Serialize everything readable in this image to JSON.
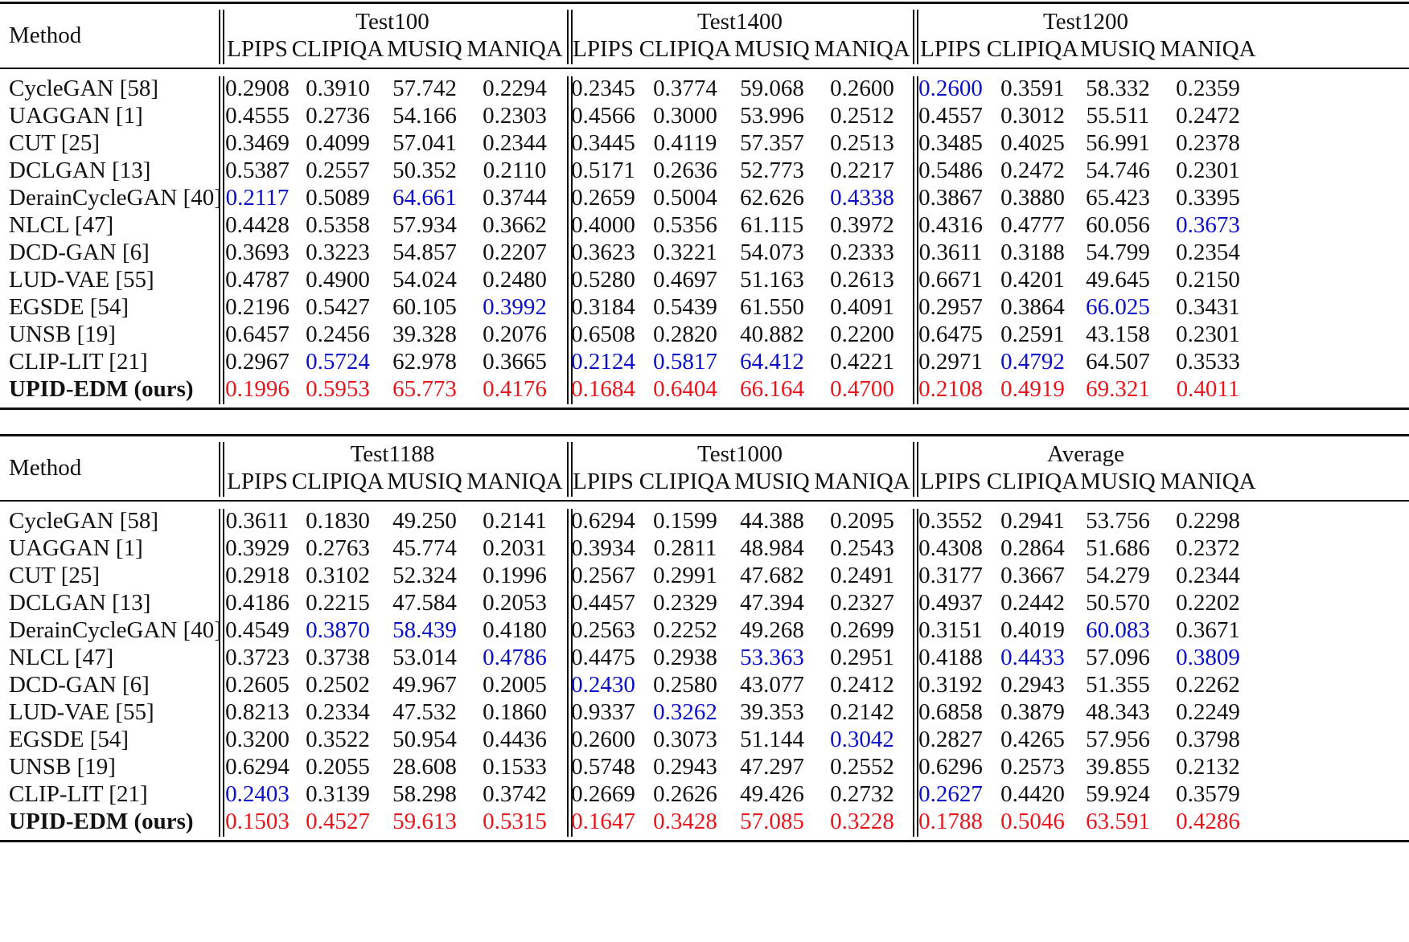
{
  "colors": {
    "best": "#e8161c",
    "second": "#0a10c8",
    "text": "#111111"
  },
  "method_header": "Method",
  "metrics": [
    "LPIPS",
    "CLIPIQA",
    "MUSIQ",
    "MANIQA"
  ],
  "methods": [
    "CycleGAN [58]",
    "UAGGAN [1]",
    "CUT [25]",
    "DCLGAN [13]",
    "DerainCycleGAN [40]",
    "NLCL [47]",
    "DCD-GAN [6]",
    "LUD-VAE [55]",
    "EGSDE [54]",
    "UNSB [19]",
    "CLIP-LIT [21]",
    "UPID-EDM (ours)"
  ],
  "tables": [
    {
      "datasets": [
        "Test100",
        "Test1400",
        "Test1200"
      ],
      "rows": [
        {
          "values": [
            "0.2908",
            "0.3910",
            "57.742",
            "0.2294",
            "0.2345",
            "0.3774",
            "59.068",
            "0.2600",
            "0.2600",
            "0.3591",
            "58.332",
            "0.2359"
          ],
          "hl": [
            "",
            "",
            "",
            "",
            "",
            "",
            "",
            "",
            "b",
            "",
            "",
            ""
          ]
        },
        {
          "values": [
            "0.4555",
            "0.2736",
            "54.166",
            "0.2303",
            "0.4566",
            "0.3000",
            "53.996",
            "0.2512",
            "0.4557",
            "0.3012",
            "55.511",
            "0.2472"
          ],
          "hl": [
            "",
            "",
            "",
            "",
            "",
            "",
            "",
            "",
            "",
            "",
            "",
            ""
          ]
        },
        {
          "values": [
            "0.3469",
            "0.4099",
            "57.041",
            "0.2344",
            "0.3445",
            "0.4119",
            "57.357",
            "0.2513",
            "0.3485",
            "0.4025",
            "56.991",
            "0.2378"
          ],
          "hl": [
            "",
            "",
            "",
            "",
            "",
            "",
            "",
            "",
            "",
            "",
            "",
            ""
          ]
        },
        {
          "values": [
            "0.5387",
            "0.2557",
            "50.352",
            "0.2110",
            "0.5171",
            "0.2636",
            "52.773",
            "0.2217",
            "0.5486",
            "0.2472",
            "54.746",
            "0.2301"
          ],
          "hl": [
            "",
            "",
            "",
            "",
            "",
            "",
            "",
            "",
            "",
            "",
            "",
            ""
          ]
        },
        {
          "values": [
            "0.2117",
            "0.5089",
            "64.661",
            "0.3744",
            "0.2659",
            "0.5004",
            "62.626",
            "0.4338",
            "0.3867",
            "0.3880",
            "65.423",
            "0.3395"
          ],
          "hl": [
            "b",
            "",
            "b",
            "",
            "",
            "",
            "",
            "b",
            "",
            "",
            "",
            ""
          ]
        },
        {
          "values": [
            "0.4428",
            "0.5358",
            "57.934",
            "0.3662",
            "0.4000",
            "0.5356",
            "61.115",
            "0.3972",
            "0.4316",
            "0.4777",
            "60.056",
            "0.3673"
          ],
          "hl": [
            "",
            "",
            "",
            "",
            "",
            "",
            "",
            "",
            "",
            "",
            "",
            "b"
          ]
        },
        {
          "values": [
            "0.3693",
            "0.3223",
            "54.857",
            "0.2207",
            "0.3623",
            "0.3221",
            "54.073",
            "0.2333",
            "0.3611",
            "0.3188",
            "54.799",
            "0.2354"
          ],
          "hl": [
            "",
            "",
            "",
            "",
            "",
            "",
            "",
            "",
            "",
            "",
            "",
            ""
          ]
        },
        {
          "values": [
            "0.4787",
            "0.4900",
            "54.024",
            "0.2480",
            "0.5280",
            "0.4697",
            "51.163",
            "0.2613",
            "0.6671",
            "0.4201",
            "49.645",
            "0.2150"
          ],
          "hl": [
            "",
            "",
            "",
            "",
            "",
            "",
            "",
            "",
            "",
            "",
            "",
            ""
          ]
        },
        {
          "values": [
            "0.2196",
            "0.5427",
            "60.105",
            "0.3992",
            "0.3184",
            "0.5439",
            "61.550",
            "0.4091",
            "0.2957",
            "0.3864",
            "66.025",
            "0.3431"
          ],
          "hl": [
            "",
            "",
            "",
            "b",
            "",
            "",
            "",
            "",
            "",
            "",
            "b",
            ""
          ]
        },
        {
          "values": [
            "0.6457",
            "0.2456",
            "39.328",
            "0.2076",
            "0.6508",
            "0.2820",
            "40.882",
            "0.2200",
            "0.6475",
            "0.2591",
            "43.158",
            "0.2301"
          ],
          "hl": [
            "",
            "",
            "",
            "",
            "",
            "",
            "",
            "",
            "",
            "",
            "",
            ""
          ]
        },
        {
          "values": [
            "0.2967",
            "0.5724",
            "62.978",
            "0.3665",
            "0.2124",
            "0.5817",
            "64.412",
            "0.4221",
            "0.2971",
            "0.4792",
            "64.507",
            "0.3533"
          ],
          "hl": [
            "",
            "b",
            "",
            "",
            "b",
            "b",
            "b",
            "",
            "",
            "b",
            "",
            ""
          ]
        },
        {
          "values": [
            "0.1996",
            "0.5953",
            "65.773",
            "0.4176",
            "0.1684",
            "0.6404",
            "66.164",
            "0.4700",
            "0.2108",
            "0.4919",
            "69.321",
            "0.4011"
          ],
          "hl": [
            "r",
            "r",
            "r",
            "r",
            "r",
            "r",
            "r",
            "r",
            "r",
            "r",
            "r",
            "r"
          ]
        }
      ]
    },
    {
      "datasets": [
        "Test1188",
        "Test1000",
        "Average"
      ],
      "rows": [
        {
          "values": [
            "0.3611",
            "0.1830",
            "49.250",
            "0.2141",
            "0.6294",
            "0.1599",
            "44.388",
            "0.2095",
            "0.3552",
            "0.2941",
            "53.756",
            "0.2298"
          ],
          "hl": [
            "",
            "",
            "",
            "",
            "",
            "",
            "",
            "",
            "",
            "",
            "",
            ""
          ]
        },
        {
          "values": [
            "0.3929",
            "0.2763",
            "45.774",
            "0.2031",
            "0.3934",
            "0.2811",
            "48.984",
            "0.2543",
            "0.4308",
            "0.2864",
            "51.686",
            "0.2372"
          ],
          "hl": [
            "",
            "",
            "",
            "",
            "",
            "",
            "",
            "",
            "",
            "",
            "",
            ""
          ]
        },
        {
          "values": [
            "0.2918",
            "0.3102",
            "52.324",
            "0.1996",
            "0.2567",
            "0.2991",
            "47.682",
            "0.2491",
            "0.3177",
            "0.3667",
            "54.279",
            "0.2344"
          ],
          "hl": [
            "",
            "",
            "",
            "",
            "",
            "",
            "",
            "",
            "",
            "",
            "",
            ""
          ]
        },
        {
          "values": [
            "0.4186",
            "0.2215",
            "47.584",
            "0.2053",
            "0.4457",
            "0.2329",
            "47.394",
            "0.2327",
            "0.4937",
            "0.2442",
            "50.570",
            "0.2202"
          ],
          "hl": [
            "",
            "",
            "",
            "",
            "",
            "",
            "",
            "",
            "",
            "",
            "",
            ""
          ]
        },
        {
          "values": [
            "0.4549",
            "0.3870",
            "58.439",
            "0.4180",
            "0.2563",
            "0.2252",
            "49.268",
            "0.2699",
            "0.3151",
            "0.4019",
            "60.083",
            "0.3671"
          ],
          "hl": [
            "",
            "b",
            "b",
            "",
            "",
            "",
            "",
            "",
            "",
            "",
            "b",
            ""
          ]
        },
        {
          "values": [
            "0.3723",
            "0.3738",
            "53.014",
            "0.4786",
            "0.4475",
            "0.2938",
            "53.363",
            "0.2951",
            "0.4188",
            "0.4433",
            "57.096",
            "0.3809"
          ],
          "hl": [
            "",
            "",
            "",
            "b",
            "",
            "",
            "b",
            "",
            "",
            "b",
            "",
            "b"
          ]
        },
        {
          "values": [
            "0.2605",
            "0.2502",
            "49.967",
            "0.2005",
            "0.2430",
            "0.2580",
            "43.077",
            "0.2412",
            "0.3192",
            "0.2943",
            "51.355",
            "0.2262"
          ],
          "hl": [
            "",
            "",
            "",
            "",
            "b",
            "",
            "",
            "",
            "",
            "",
            "",
            ""
          ]
        },
        {
          "values": [
            "0.8213",
            "0.2334",
            "47.532",
            "0.1860",
            "0.9337",
            "0.3262",
            "39.353",
            "0.2142",
            "0.6858",
            "0.3879",
            "48.343",
            "0.2249"
          ],
          "hl": [
            "",
            "",
            "",
            "",
            "",
            "b",
            "",
            "",
            "",
            "",
            "",
            ""
          ]
        },
        {
          "values": [
            "0.3200",
            "0.3522",
            "50.954",
            "0.4436",
            "0.2600",
            "0.3073",
            "51.144",
            "0.3042",
            "0.2827",
            "0.4265",
            "57.956",
            "0.3798"
          ],
          "hl": [
            "",
            "",
            "",
            "",
            "",
            "",
            "",
            "b",
            "",
            "",
            "",
            ""
          ]
        },
        {
          "values": [
            "0.6294",
            "0.2055",
            "28.608",
            "0.1533",
            "0.5748",
            "0.2943",
            "47.297",
            "0.2552",
            "0.6296",
            "0.2573",
            "39.855",
            "0.2132"
          ],
          "hl": [
            "",
            "",
            "",
            "",
            "",
            "",
            "",
            "",
            "",
            "",
            "",
            ""
          ]
        },
        {
          "values": [
            "0.2403",
            "0.3139",
            "58.298",
            "0.3742",
            "0.2669",
            "0.2626",
            "49.426",
            "0.2732",
            "0.2627",
            "0.4420",
            "59.924",
            "0.3579"
          ],
          "hl": [
            "b",
            "",
            "",
            "",
            "",
            "",
            "",
            "",
            "b",
            "",
            "",
            ""
          ]
        },
        {
          "values": [
            "0.1503",
            "0.4527",
            "59.613",
            "0.5315",
            "0.1647",
            "0.3428",
            "57.085",
            "0.3228",
            "0.1788",
            "0.5046",
            "63.591",
            "0.4286"
          ],
          "hl": [
            "r",
            "r",
            "r",
            "r",
            "r",
            "r",
            "r",
            "r",
            "r",
            "r",
            "r",
            "r"
          ]
        }
      ]
    }
  ]
}
